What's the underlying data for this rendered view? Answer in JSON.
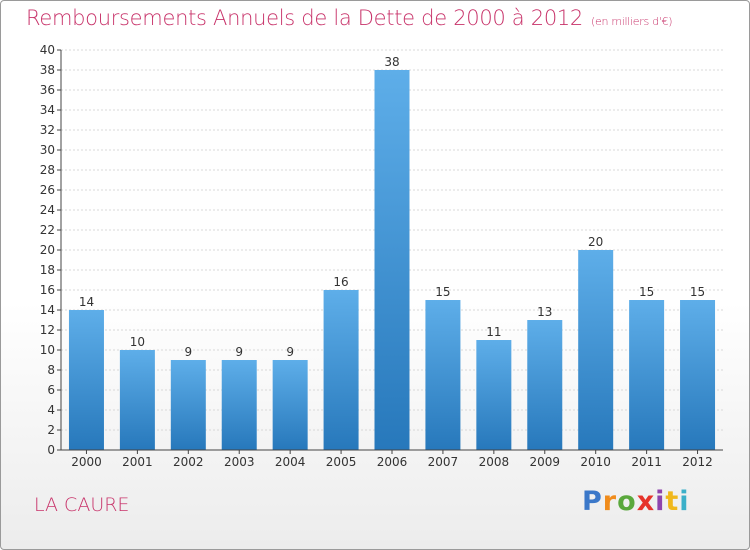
{
  "title": "Remboursements Annuels de la Dette de 2000 à 2012",
  "subtitle": "(en milliers d'€)",
  "place": "LA CAURE",
  "brand": {
    "letters": [
      "P",
      "r",
      "o",
      "x",
      "i",
      "t",
      "i"
    ],
    "colors": [
      "#3b78c9",
      "#f08c1c",
      "#5aa83c",
      "#e6332a",
      "#8e44ad",
      "#f0b81c",
      "#3bb0c9"
    ]
  },
  "colors": {
    "title": "#c8336a",
    "bar_light": "#5eaee9",
    "bar_dark": "#2778bb",
    "grid": "#d8d8d8",
    "axis": "#444444"
  },
  "chart_data": {
    "type": "bar",
    "categories": [
      "2000",
      "2001",
      "2002",
      "2003",
      "2004",
      "2005",
      "2006",
      "2007",
      "2008",
      "2009",
      "2010",
      "2011",
      "2012"
    ],
    "values": [
      14,
      10,
      9,
      9,
      9,
      16,
      38,
      15,
      11,
      13,
      20,
      15,
      15
    ],
    "yticks": [
      0,
      2,
      4,
      6,
      8,
      10,
      12,
      14,
      16,
      18,
      20,
      22,
      24,
      26,
      28,
      30,
      32,
      34,
      36,
      38,
      40
    ],
    "ylim": [
      0,
      40
    ],
    "grid": true
  }
}
